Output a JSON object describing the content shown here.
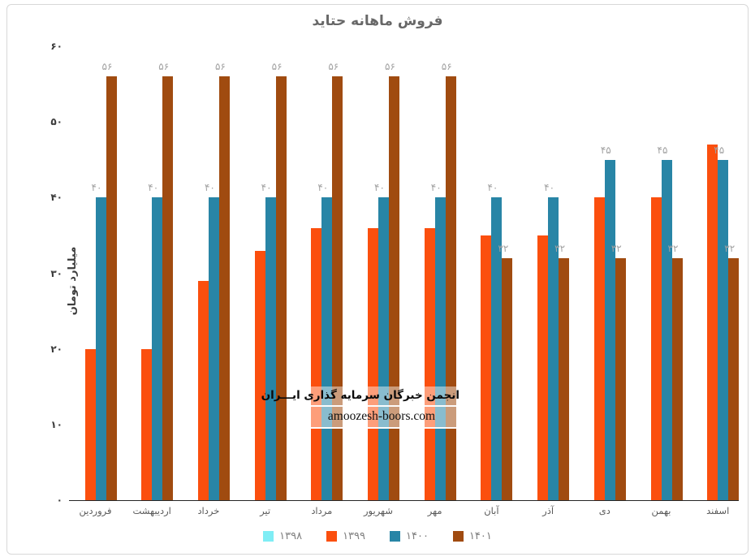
{
  "chart_data": {
    "type": "bar",
    "title": "فروش ماهانه حتاید",
    "ylabel": "میلیارد تومان",
    "xlabel": "",
    "ylim": [
      0,
      60
    ],
    "grid": false,
    "legend_position": "bottom",
    "y_ticks": [
      {
        "value": 0,
        "label": "۰"
      },
      {
        "value": 10,
        "label": "۱۰"
      },
      {
        "value": 20,
        "label": "۲۰"
      },
      {
        "value": 30,
        "label": "۳۰"
      },
      {
        "value": 40,
        "label": "۴۰"
      },
      {
        "value": 50,
        "label": "۵۰"
      },
      {
        "value": 60,
        "label": "۶۰"
      }
    ],
    "categories": [
      "فروردین",
      "اردیبهشت",
      "خرداد",
      "تیر",
      "مرداد",
      "شهریور",
      "مهر",
      "آبان",
      "آذر",
      "دی",
      "بهمن",
      "اسفند"
    ],
    "series": [
      {
        "name": "۱۳۹۸",
        "color": "#7FEDF5",
        "values": [
          0,
          0,
          0,
          0,
          0,
          0,
          0,
          0,
          0,
          0,
          0,
          0
        ],
        "labels": [
          "",
          "",
          "",
          "",
          "",
          "",
          "",
          "",
          "",
          "",
          "",
          ""
        ]
      },
      {
        "name": "۱۳۹۹",
        "color": "#FB4F0E",
        "values": [
          20,
          20,
          29,
          33,
          36,
          36,
          36,
          35,
          35,
          40,
          40,
          47
        ],
        "labels": [
          "",
          "",
          "",
          "",
          "",
          "",
          "",
          "",
          "",
          "",
          "",
          ""
        ]
      },
      {
        "name": "۱۴۰۰",
        "color": "#2885A6",
        "values": [
          40,
          40,
          40,
          40,
          40,
          40,
          40,
          40,
          40,
          45,
          45,
          45
        ],
        "labels": [
          "۴۰",
          "۴۰",
          "۴۰",
          "۴۰",
          "۴۰",
          "۴۰",
          "۴۰",
          "۴۰",
          "۴۰",
          "۴۵",
          "۴۵",
          "۴۵"
        ]
      },
      {
        "name": "۱۴۰۱",
        "color": "#A04B10",
        "values": [
          56,
          56,
          56,
          56,
          56,
          56,
          56,
          32,
          32,
          32,
          32,
          32
        ],
        "labels": [
          "۵۶",
          "۵۶",
          "۵۶",
          "۵۶",
          "۵۶",
          "۵۶",
          "۵۶",
          "۳۲",
          "۳۲",
          "۳۲",
          "۳۲",
          "۳۲"
        ]
      }
    ]
  },
  "watermark": {
    "line1": "انجمن خبرگان سرمایه گذاری ایـــران",
    "line2": "amoozesh-boors.com"
  }
}
